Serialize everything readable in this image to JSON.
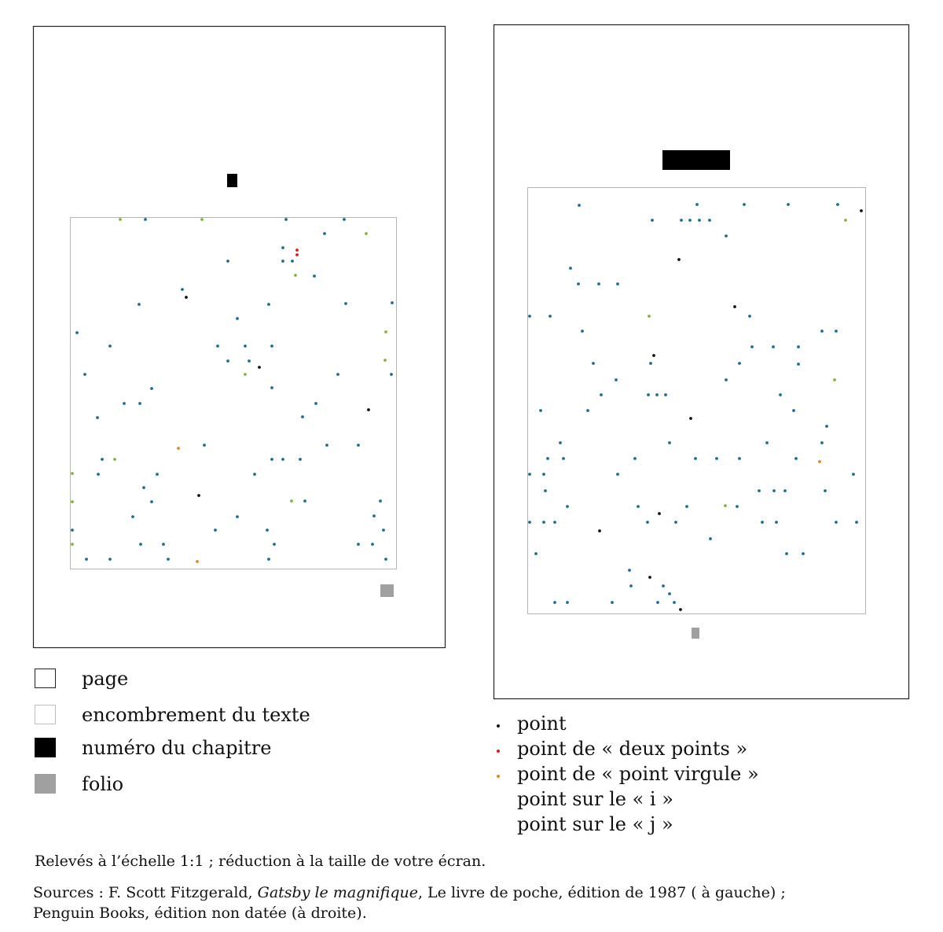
{
  "legend_boxes": [
    {
      "key": "page",
      "label": "page"
    },
    {
      "key": "text",
      "label": "encombrement du texte"
    },
    {
      "key": "chapter",
      "label": "numéro du chapitre"
    },
    {
      "key": "folio",
      "label": "folio"
    }
  ],
  "legend_dots": [
    {
      "key": "p",
      "label": "point",
      "color": "#111111"
    },
    {
      "key": "c",
      "label": "point de « deux points »",
      "color": "#d7191c"
    },
    {
      "key": "s",
      "label": "point de « point virgule »",
      "color": "#e08a1e"
    },
    {
      "key": "i",
      "label": "point sur le « i »",
      "color": "#1a6f8f"
    },
    {
      "key": "j",
      "label": "point sur le « j »",
      "color": "#86b33a"
    }
  ],
  "note": "Relevés à l’échelle 1:1 ; réduction à la taille de votre écran.",
  "sources": {
    "prefix": "Sources : F. Scott Fitzgerald, ",
    "title": "Gatsby le magnifique",
    "rest1": ", Le livre de poche, édition de 1987 ( à gauche) ;",
    "line2": "Penguin Books, édition non datée (à droite)."
  }
}
